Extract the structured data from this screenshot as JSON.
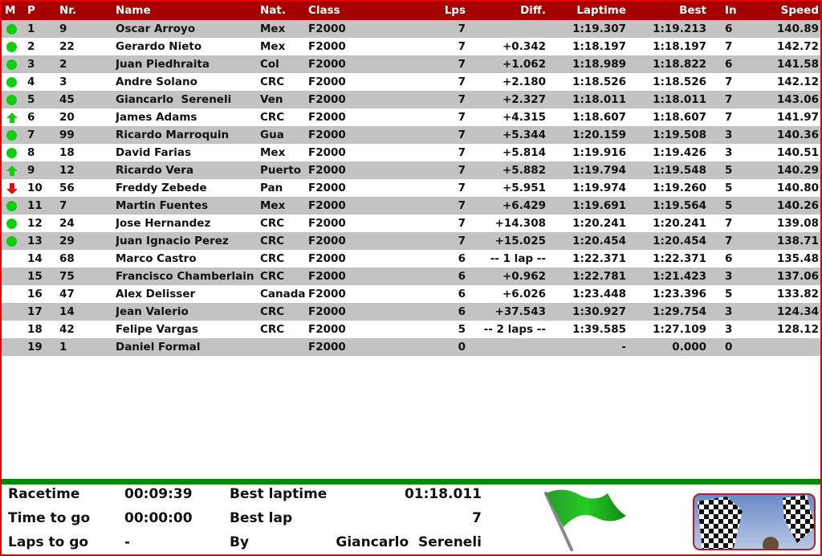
{
  "columns": {
    "m": "M",
    "p": "P",
    "nr": "Nr.",
    "name": "Name",
    "nat": "Nat.",
    "class": "Class",
    "lps": "Lps",
    "diff": "Diff.",
    "laptime": "Laptime",
    "best": "Best",
    "in": "In",
    "speed": "Speed"
  },
  "colors": {
    "header": "#a40000",
    "row_alt": "#c3c3c3",
    "same": "#11cc11",
    "up": "#11cc11",
    "down": "#dd1111",
    "stripe": "#0a860a"
  },
  "rows": [
    {
      "m": "same",
      "p": "1",
      "nr": "9",
      "name": "Oscar Arroyo",
      "nat": "Mex",
      "class": "F2000",
      "lps": "7",
      "diff": "",
      "laptime": "1:19.307",
      "best": "1:19.213",
      "in": "6",
      "speed": "140.89"
    },
    {
      "m": "same",
      "p": "2",
      "nr": "22",
      "name": "Gerardo Nieto",
      "nat": "Mex",
      "class": "F2000",
      "lps": "7",
      "diff": "+0.342",
      "laptime": "1:18.197",
      "best": "1:18.197",
      "in": "7",
      "speed": "142.72"
    },
    {
      "m": "same",
      "p": "3",
      "nr": "2",
      "name": "Juan Piedhraita",
      "nat": "Col",
      "class": "F2000",
      "lps": "7",
      "diff": "+1.062",
      "laptime": "1:18.989",
      "best": "1:18.822",
      "in": "6",
      "speed": "141.58"
    },
    {
      "m": "same",
      "p": "4",
      "nr": "3",
      "name": "Andre Solano",
      "nat": "CRC",
      "class": "F2000",
      "lps": "7",
      "diff": "+2.180",
      "laptime": "1:18.526",
      "best": "1:18.526",
      "in": "7",
      "speed": "142.12"
    },
    {
      "m": "same",
      "p": "5",
      "nr": "45",
      "name": "Giancarlo  Sereneli",
      "nat": "Ven",
      "class": "F2000",
      "lps": "7",
      "diff": "+2.327",
      "laptime": "1:18.011",
      "best": "1:18.011",
      "in": "7",
      "speed": "143.06"
    },
    {
      "m": "up",
      "p": "6",
      "nr": "20",
      "name": "James Adams",
      "nat": "CRC",
      "class": "F2000",
      "lps": "7",
      "diff": "+4.315",
      "laptime": "1:18.607",
      "best": "1:18.607",
      "in": "7",
      "speed": "141.97"
    },
    {
      "m": "same",
      "p": "7",
      "nr": "99",
      "name": "Ricardo Marroquin",
      "nat": "Gua",
      "class": "F2000",
      "lps": "7",
      "diff": "+5.344",
      "laptime": "1:20.159",
      "best": "1:19.508",
      "in": "3",
      "speed": "140.36"
    },
    {
      "m": "same",
      "p": "8",
      "nr": "18",
      "name": "David Farias",
      "nat": "Mex",
      "class": "F2000",
      "lps": "7",
      "diff": "+5.814",
      "laptime": "1:19.916",
      "best": "1:19.426",
      "in": "3",
      "speed": "140.51"
    },
    {
      "m": "up",
      "p": "9",
      "nr": "12",
      "name": "Ricardo Vera",
      "nat": "Puerto",
      "class": "F2000",
      "lps": "7",
      "diff": "+5.882",
      "laptime": "1:19.794",
      "best": "1:19.548",
      "in": "5",
      "speed": "140.29"
    },
    {
      "m": "down",
      "p": "10",
      "nr": "56",
      "name": "Freddy Zebede",
      "nat": "Pan",
      "class": "F2000",
      "lps": "7",
      "diff": "+5.951",
      "laptime": "1:19.974",
      "best": "1:19.260",
      "in": "5",
      "speed": "140.80"
    },
    {
      "m": "same",
      "p": "11",
      "nr": "7",
      "name": "Martin Fuentes",
      "nat": "Mex",
      "class": "F2000",
      "lps": "7",
      "diff": "+6.429",
      "laptime": "1:19.691",
      "best": "1:19.564",
      "in": "5",
      "speed": "140.26"
    },
    {
      "m": "same",
      "p": "12",
      "nr": "24",
      "name": "Jose Hernandez",
      "nat": "CRC",
      "class": "F2000",
      "lps": "7",
      "diff": "+14.308",
      "laptime": "1:20.241",
      "best": "1:20.241",
      "in": "7",
      "speed": "139.08"
    },
    {
      "m": "same",
      "p": "13",
      "nr": "29",
      "name": "Juan Ignacio Perez",
      "nat": "CRC",
      "class": "F2000",
      "lps": "7",
      "diff": "+15.025",
      "laptime": "1:20.454",
      "best": "1:20.454",
      "in": "7",
      "speed": "138.71"
    },
    {
      "m": "",
      "p": "14",
      "nr": "68",
      "name": "Marco Castro",
      "nat": "CRC",
      "class": "F2000",
      "lps": "6",
      "diff": "-- 1 lap --",
      "laptime": "1:22.371",
      "best": "1:22.371",
      "in": "6",
      "speed": "135.48"
    },
    {
      "m": "",
      "p": "15",
      "nr": "75",
      "name": "Francisco Chamberlain",
      "nat": "CRC",
      "class": "F2000",
      "lps": "6",
      "diff": "+0.962",
      "laptime": "1:22.781",
      "best": "1:21.423",
      "in": "3",
      "speed": "137.06"
    },
    {
      "m": "",
      "p": "16",
      "nr": "47",
      "name": "Alex Delisser",
      "nat": "Canada",
      "class": "F2000",
      "lps": "6",
      "diff": "+6.026",
      "laptime": "1:23.448",
      "best": "1:23.396",
      "in": "5",
      "speed": "133.82"
    },
    {
      "m": "",
      "p": "17",
      "nr": "14",
      "name": "Jean Valerio",
      "nat": "CRC",
      "class": "F2000",
      "lps": "6",
      "diff": "+37.543",
      "laptime": "1:30.927",
      "best": "1:29.754",
      "in": "3",
      "speed": "124.34"
    },
    {
      "m": "",
      "p": "18",
      "nr": "42",
      "name": "Felipe Vargas",
      "nat": "CRC",
      "class": "F2000",
      "lps": "5",
      "diff": "-- 2 laps --",
      "laptime": "1:39.585",
      "best": "1:27.109",
      "in": "3",
      "speed": "128.12"
    },
    {
      "m": "",
      "p": "19",
      "nr": "1",
      "name": "Daniel Formal",
      "nat": "",
      "class": "F2000",
      "lps": "0",
      "diff": "",
      "laptime": "-",
      "best": "0.000",
      "in": "0",
      "speed": ""
    }
  ],
  "footer": {
    "racetime_label": "Racetime",
    "racetime": "00:09:39",
    "timetogo_label": "Time to go",
    "timetogo": "00:00:00",
    "lapstogo_label": "Laps to go",
    "lapstogo": "-",
    "bestlaptime_label": "Best laptime",
    "bestlaptime": "01:18.011",
    "bestlap_label": "Best lap",
    "bestlap": "7",
    "by_label": "By",
    "by": "Giancarlo  Sereneli",
    "flag": "green-flag-icon"
  }
}
